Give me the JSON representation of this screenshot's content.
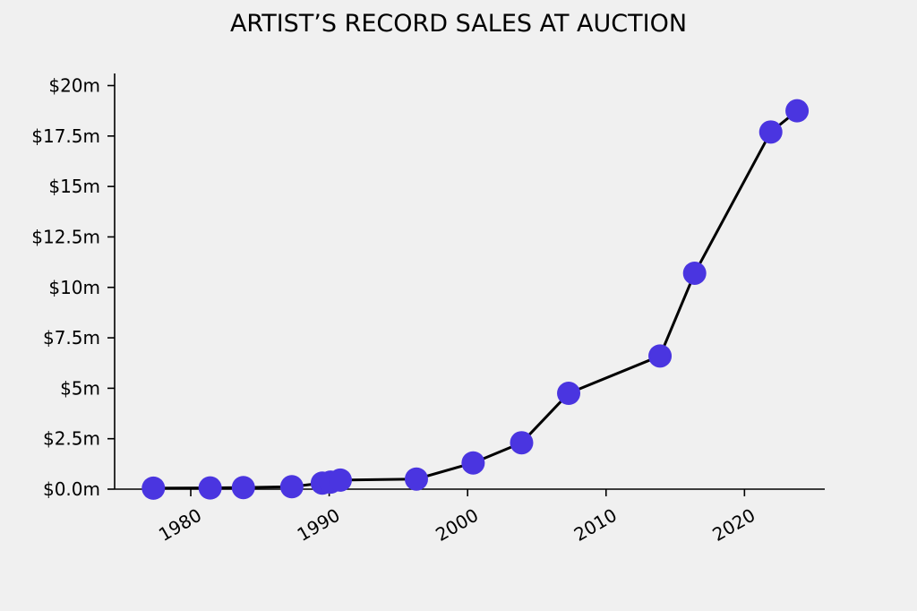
{
  "chart_data": {
    "type": "line",
    "title": "ARTIST’S RECORD SALES AT AUCTION",
    "xlabel": "",
    "ylabel": "",
    "xlim": [
      1974.5,
      2025.8
    ],
    "ylim": [
      0,
      20.6
    ],
    "x_ticks": [
      1980,
      1990,
      2000,
      2010,
      2020
    ],
    "x_tick_labels": [
      "1980",
      "1990",
      "2000",
      "2010",
      "2020"
    ],
    "y_ticks": [
      0,
      2.5,
      5,
      7.5,
      10,
      12.5,
      15,
      17.5,
      20
    ],
    "y_tick_labels": [
      "$0.0m",
      "$2.5m",
      "$5m",
      "$7.5m",
      "$10m",
      "$12.5m",
      "$15m",
      "$17.5m",
      "$20m"
    ],
    "grid": false,
    "legend": "none",
    "series": [
      {
        "x": [
          1977.3,
          1981.4,
          1983.8,
          1987.3,
          1989.5,
          1990.1,
          1990.8,
          1996.3,
          2000.4,
          2003.9,
          2007.3,
          2013.9,
          2016.4,
          2021.9,
          2023.8
        ],
        "y": [
          0.05,
          0.06,
          0.08,
          0.12,
          0.3,
          0.35,
          0.45,
          0.5,
          1.3,
          2.3,
          4.75,
          6.6,
          10.7,
          17.7,
          18.75
        ],
        "line_color": "#000000",
        "marker_color": "#4a35e0"
      }
    ]
  }
}
